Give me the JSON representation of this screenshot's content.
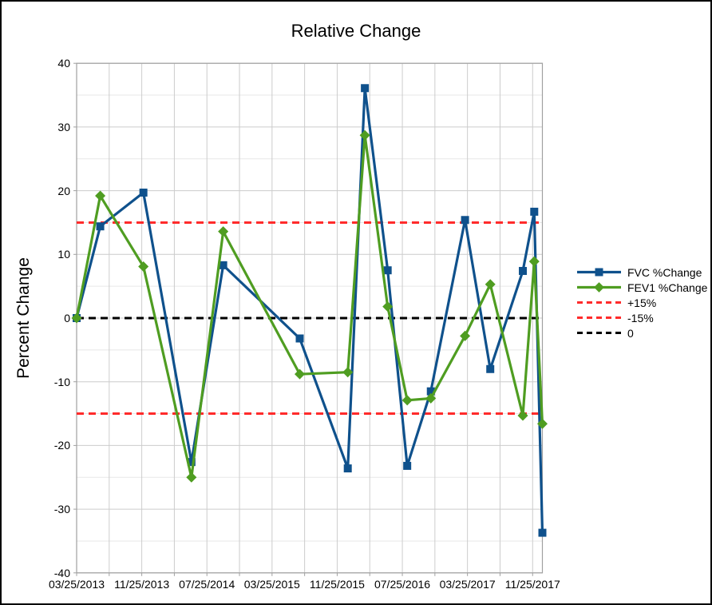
{
  "title": "Relative Change",
  "y_axis_title": "Percent Change",
  "colors": {
    "fvc": "#0f518c",
    "fev1": "#4f9d21",
    "ref_red": "#ff2b2b",
    "ref_black": "#000000",
    "grid_major": "#cccccc",
    "grid_minor": "#e7e7e7",
    "axis": "#a0a0a0"
  },
  "legend": {
    "items": [
      {
        "label": "FVC %Change",
        "swatch": "line-square",
        "color_key": "fvc"
      },
      {
        "label": "FEV1 %Change",
        "swatch": "line-diamond",
        "color_key": "fev1"
      },
      {
        "label": "+15%",
        "swatch": "dashed-line",
        "color_key": "ref_red"
      },
      {
        "label": "-15%",
        "swatch": "dashed-line",
        "color_key": "ref_red"
      },
      {
        "label": "0",
        "swatch": "dashed-line",
        "color_key": "ref_black"
      }
    ]
  },
  "chart_data": {
    "type": "line",
    "title": "Relative Change",
    "xlabel": "",
    "ylabel": "Percent Change",
    "ylim": [
      -40,
      40
    ],
    "y_major_step": 10,
    "y_minor_step": 5,
    "y_tick_labels": [
      "40",
      "30",
      "20",
      "10",
      "0",
      "-10",
      "-20",
      "-30",
      "-40"
    ],
    "x_tick_labels": [
      "03/25/2013",
      "11/25/2013",
      "07/25/2014",
      "03/25/2015",
      "11/25/2015",
      "07/25/2016",
      "03/25/2017",
      "11/25/2017"
    ],
    "x_label_interval_months": 8,
    "x_gridline_interval_months": 4,
    "xlim_months": [
      0,
      57.2
    ],
    "x_unit": "months since 03/25/2013 (point positions estimated from date axis)",
    "grid": true,
    "legend_position": "right",
    "series": [
      {
        "name": "FVC %Change",
        "marker": "square",
        "color_key": "fvc",
        "x": [
          0,
          2.9,
          8.2,
          14.1,
          18.0,
          27.4,
          33.3,
          35.4,
          38.2,
          40.6,
          43.5,
          47.7,
          50.8,
          54.8,
          56.2,
          57.2
        ],
        "y": [
          0,
          14.4,
          19.7,
          -22.6,
          8.3,
          -3.2,
          -23.6,
          36.1,
          7.5,
          -23.2,
          -11.5,
          15.4,
          -8.0,
          7.4,
          16.7,
          -33.7
        ]
      },
      {
        "name": "FEV1 %Change",
        "marker": "diamond",
        "color_key": "fev1",
        "x": [
          0,
          2.9,
          8.2,
          14.1,
          18.0,
          27.4,
          33.3,
          35.4,
          38.2,
          40.6,
          43.5,
          47.7,
          50.8,
          54.8,
          56.2,
          57.2
        ],
        "y": [
          0,
          19.2,
          8.1,
          -25.0,
          13.6,
          -8.8,
          -8.5,
          28.7,
          1.8,
          -12.9,
          -12.6,
          -2.8,
          5.3,
          -15.3,
          8.9,
          -16.6
        ]
      }
    ],
    "reference_lines": [
      {
        "name": "+15%",
        "y": 15,
        "color_key": "ref_red",
        "dashed": true
      },
      {
        "name": "-15%",
        "y": -15,
        "color_key": "ref_red",
        "dashed": true
      },
      {
        "name": "0",
        "y": 0,
        "color_key": "ref_black",
        "dashed": true
      }
    ]
  }
}
